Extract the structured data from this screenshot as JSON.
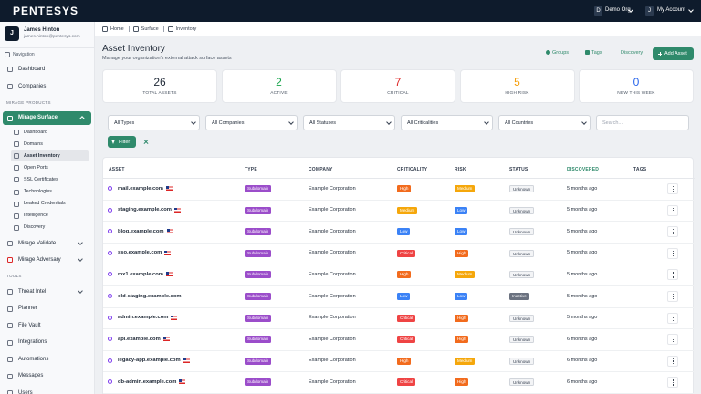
{
  "header": {
    "logo": "PENTESYS",
    "org_initial": "D",
    "org": "Demo Org",
    "account_initial": "J",
    "account": "My Account"
  },
  "sidebar": {
    "user": {
      "initial": "J",
      "name": "James Hinton",
      "email": "james.hinton@pentesys.com"
    },
    "nav_label": "Navigation",
    "nav": [
      "Dashboard",
      "Companies"
    ],
    "products_label": "MIRAGE PRODUCTS",
    "surface": "Mirage Surface",
    "surface_items": [
      "Dashboard",
      "Domains",
      "Asset Inventory",
      "Open Ports",
      "SSL Certificates",
      "Technologies",
      "Leaked Credentials",
      "Intelligence",
      "Discovery"
    ],
    "surface_active": 2,
    "products": [
      "Mirage Validate",
      "Mirage Adversary"
    ],
    "tools_label": "TOOLS",
    "tools": [
      "Threat Intel",
      "Planner",
      "File Vault",
      "Integrations",
      "Automations",
      "Messages",
      "Users"
    ]
  },
  "breadcrumb": [
    "Home",
    "Surface",
    "Inventory"
  ],
  "title": "Asset Inventory",
  "subtitle": "Manage your organization's external attack surface assets",
  "actions": [
    "Groups",
    "Tags",
    "Discovery"
  ],
  "primary_action": "Add Asset",
  "stats": [
    {
      "value": 26,
      "label": "TOTAL ASSETS",
      "color": "#1f2937"
    },
    {
      "value": 2,
      "label": "ACTIVE",
      "color": "#16a34a"
    },
    {
      "value": 7,
      "label": "CRITICAL",
      "color": "#dc2626"
    },
    {
      "value": 5,
      "label": "HIGH RISK",
      "color": "#f59e0b"
    },
    {
      "value": 0,
      "label": "NEW THIS WEEK",
      "color": "#2563eb"
    }
  ],
  "filters": [
    "All Types",
    "All Companies",
    "All Statuses",
    "All Criticalities",
    "All Countries"
  ],
  "search_placeholder": "Search...",
  "filter_button": "Filter",
  "table": {
    "columns": [
      "ASSET",
      "TYPE",
      "COMPANY",
      "CRITICALITY",
      "RISK",
      "STATUS",
      "DISCOVERED",
      "TAGS"
    ],
    "sorted_column": 6,
    "badge_colors": {
      "Subdomain": "#9b4dca",
      "High": "#f26b1d",
      "Medium": "#f5a70b",
      "Low": "#3b82f6",
      "Critical": "#ef4444",
      "Unknown": "#f3f4f6",
      "Inactive": "#6b7280"
    },
    "rows": [
      {
        "asset": "mail.example.com",
        "flag": true,
        "type": "Subdomain",
        "company": "Example Corporation",
        "criticality": "High",
        "risk": "Medium",
        "status": "Unknown",
        "discovered": "5 months ago"
      },
      {
        "asset": "staging.example.com",
        "flag": true,
        "type": "Subdomain",
        "company": "Example Corporation",
        "criticality": "Medium",
        "risk": "Low",
        "status": "Unknown",
        "discovered": "5 months ago"
      },
      {
        "asset": "blog.example.com",
        "flag": true,
        "type": "Subdomain",
        "company": "Example Corporation",
        "criticality": "Low",
        "risk": "Low",
        "status": "Unknown",
        "discovered": "5 months ago"
      },
      {
        "asset": "sso.example.com",
        "flag": true,
        "type": "Subdomain",
        "company": "Example Corporation",
        "criticality": "Critical",
        "risk": "High",
        "status": "Unknown",
        "discovered": "5 months ago"
      },
      {
        "asset": "mx1.example.com",
        "flag": true,
        "type": "Subdomain",
        "company": "Example Corporation",
        "criticality": "High",
        "risk": "Medium",
        "status": "Unknown",
        "discovered": "5 months ago"
      },
      {
        "asset": "old-staging.example.com",
        "flag": false,
        "type": "Subdomain",
        "company": "Example Corporation",
        "criticality": "Low",
        "risk": "Low",
        "status": "Inactive",
        "discovered": "5 months ago"
      },
      {
        "asset": "admin.example.com",
        "flag": true,
        "type": "Subdomain",
        "company": "Example Corporation",
        "criticality": "Critical",
        "risk": "High",
        "status": "Unknown",
        "discovered": "5 months ago"
      },
      {
        "asset": "api.example.com",
        "flag": true,
        "type": "Subdomain",
        "company": "Example Corporation",
        "criticality": "Critical",
        "risk": "High",
        "status": "Unknown",
        "discovered": "6 months ago"
      },
      {
        "asset": "legacy-app.example.com",
        "flag": true,
        "type": "Subdomain",
        "company": "Example Corporation",
        "criticality": "High",
        "risk": "Medium",
        "status": "Unknown",
        "discovered": "6 months ago"
      },
      {
        "asset": "db-admin.example.com",
        "flag": true,
        "type": "Subdomain",
        "company": "Example Corporation",
        "criticality": "Critical",
        "risk": "High",
        "status": "Unknown",
        "discovered": "6 months ago"
      }
    ]
  }
}
